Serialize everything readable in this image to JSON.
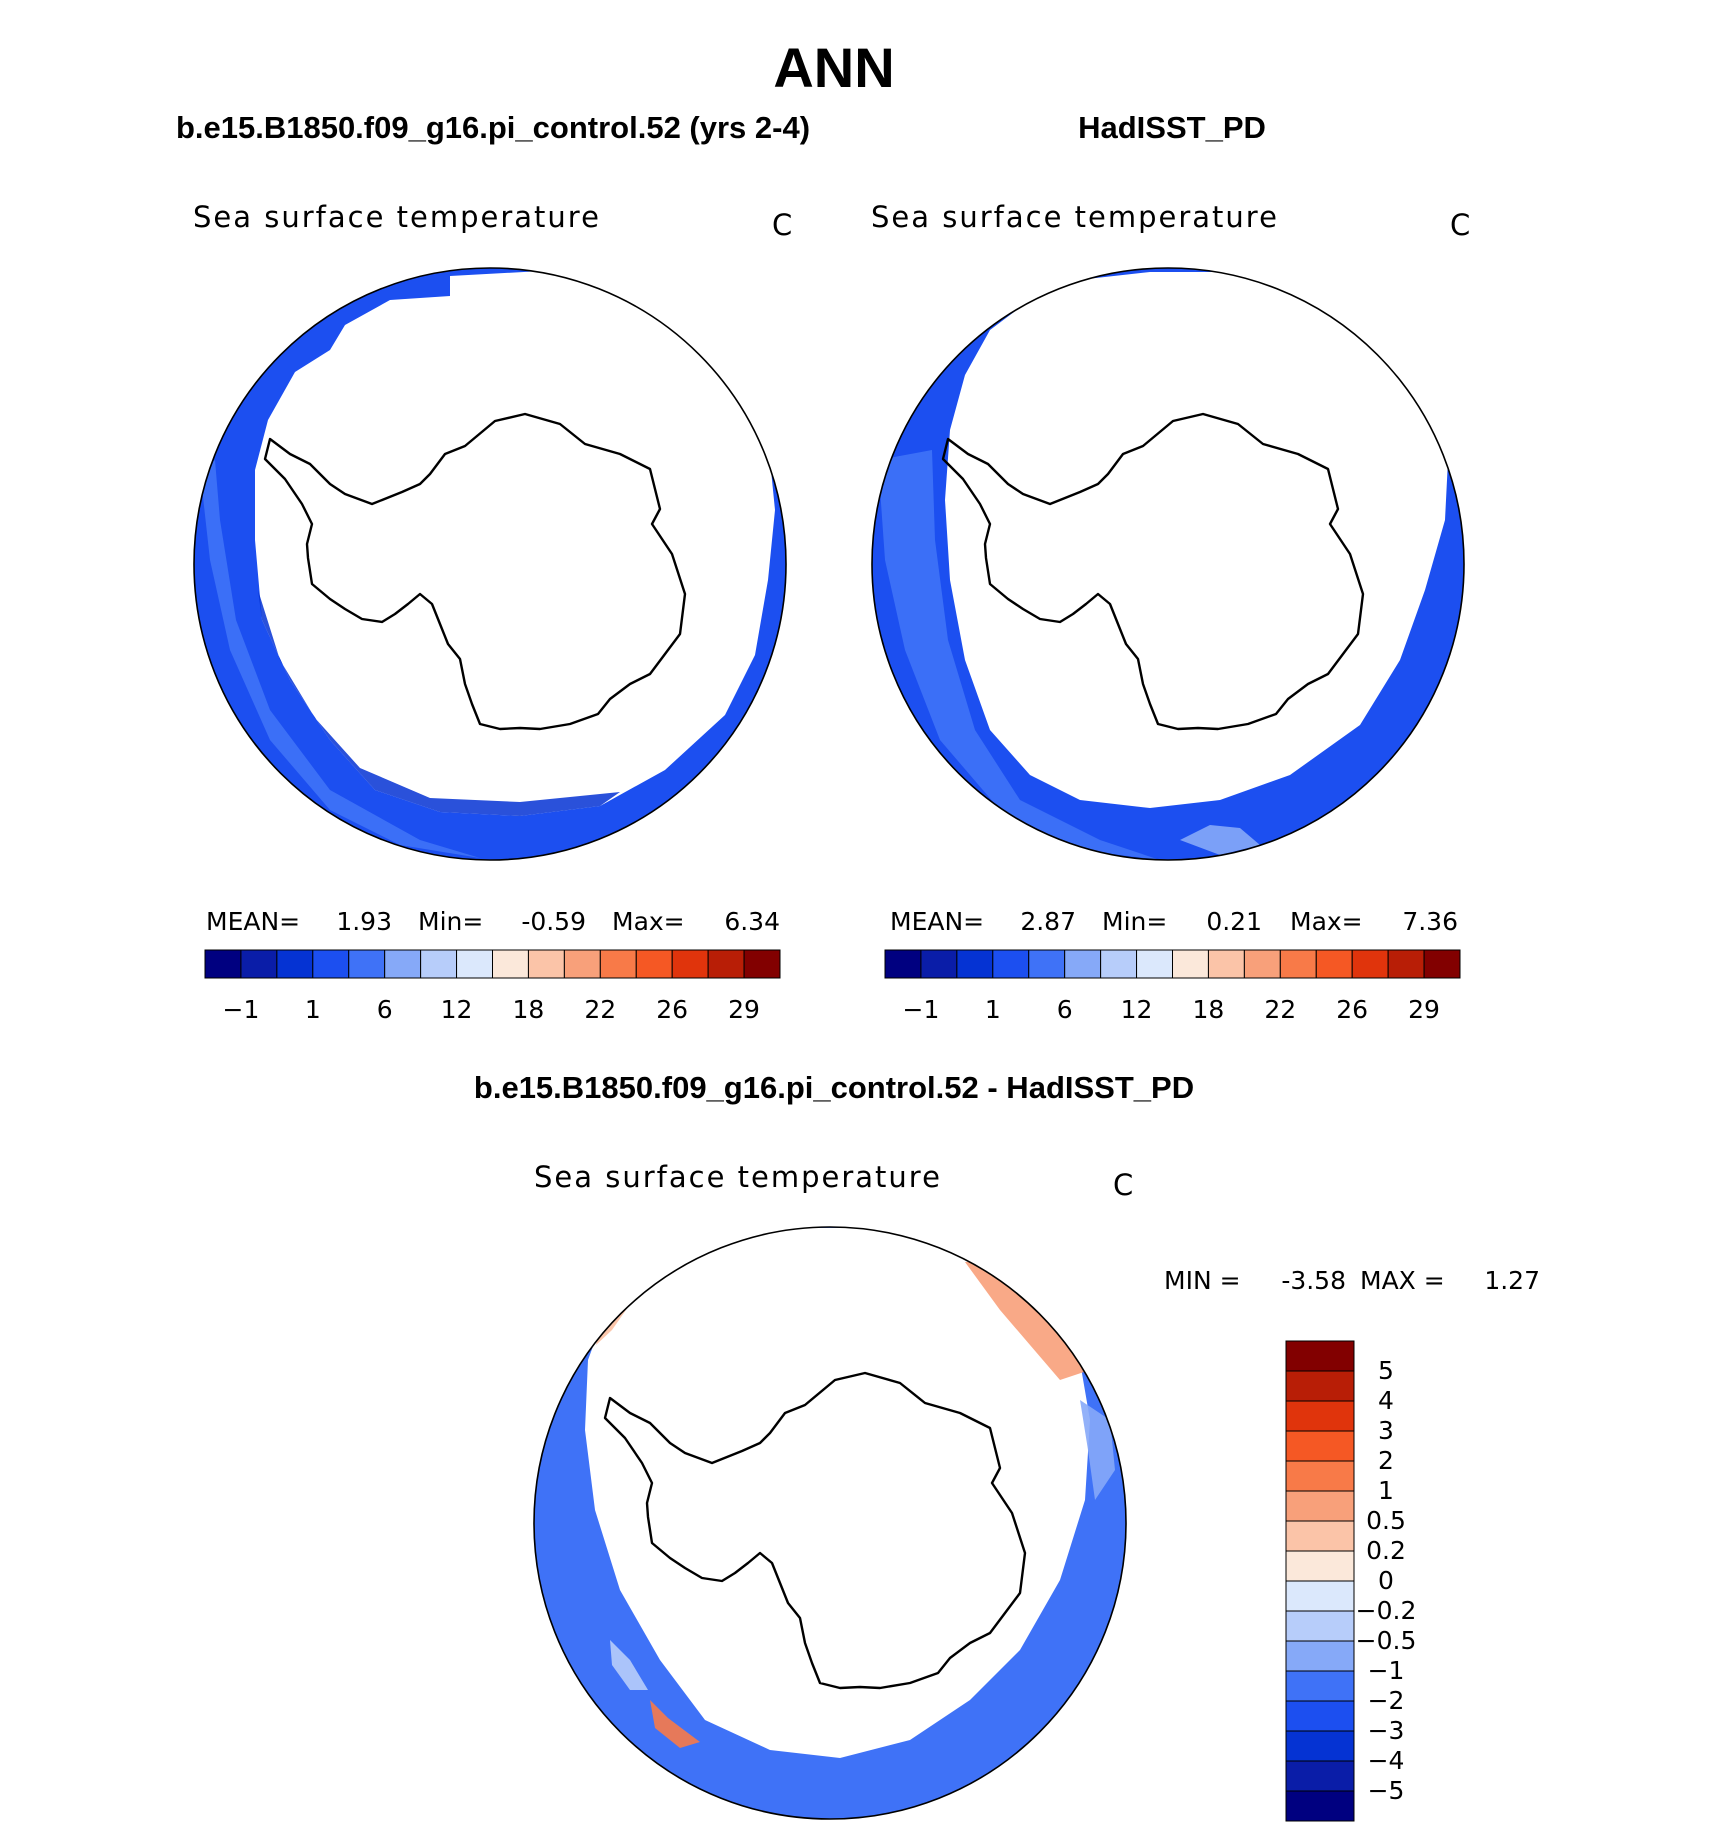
{
  "figure": {
    "season": "ANN",
    "left_title": "b.e15.B1850.f09_g16.pi_control.52 (yrs 2-4)",
    "right_title": "HadISST_PD",
    "diff_title": "b.e15.B1850.f09_g16.pi_control.52 - HadISST_PD"
  },
  "chart_data": [
    {
      "type": "heatmap",
      "name": "model",
      "title": "b.e15.B1850.f09_g16.pi_control.52 (yrs 2-4)",
      "field": "Sea surface temperature",
      "units": "C",
      "projection": "south polar stereographic",
      "stats": {
        "mean_label": "MEAN=",
        "mean": "1.93",
        "min_label": "Min=",
        "min": "-0.59",
        "max_label": "Max=",
        "max": "6.34"
      },
      "colorbar": {
        "levels": [
          -1,
          1,
          6,
          12,
          18,
          22,
          26,
          29
        ],
        "colors": [
          "#000080",
          "#0a1da8",
          "#0533d3",
          "#1c4ff0",
          "#3f72f7",
          "#86a9f8",
          "#b7cdfa",
          "#dbe8fc",
          "#fbe8da",
          "#fbc4a8",
          "#f8a07a",
          "#f87a48",
          "#f55824",
          "#e0340c",
          "#b81e06",
          "#820000"
        ]
      }
    },
    {
      "type": "heatmap",
      "name": "obs",
      "title": "HadISST_PD",
      "field": "Sea surface temperature",
      "units": "C",
      "projection": "south polar stereographic",
      "stats": {
        "mean_label": "MEAN=",
        "mean": "2.87",
        "min_label": "Min=",
        "min": "0.21",
        "max_label": "Max=",
        "max": "7.36"
      },
      "colorbar": {
        "levels": [
          -1,
          1,
          6,
          12,
          18,
          22,
          26,
          29
        ],
        "colors": [
          "#000080",
          "#0a1da8",
          "#0533d3",
          "#1c4ff0",
          "#3f72f7",
          "#86a9f8",
          "#b7cdfa",
          "#dbe8fc",
          "#fbe8da",
          "#fbc4a8",
          "#f8a07a",
          "#f87a48",
          "#f55824",
          "#e0340c",
          "#b81e06",
          "#820000"
        ]
      }
    },
    {
      "type": "heatmap",
      "name": "difference",
      "title": "b.e15.B1850.f09_g16.pi_control.52 - HadISST_PD",
      "field": "Sea surface temperature",
      "units": "C",
      "projection": "south polar stereographic",
      "stats": {
        "min_label": "MIN =",
        "min": "-3.58",
        "max_label": "MAX =",
        "max": "1.27"
      },
      "colorbar": {
        "orientation": "vertical",
        "levels": [
          5,
          4,
          3,
          2,
          1,
          0.5,
          0.2,
          0,
          -0.2,
          -0.5,
          -1,
          -2,
          -3,
          -4,
          -5
        ],
        "colors": [
          "#820000",
          "#b81e06",
          "#e0340c",
          "#f55824",
          "#f87a48",
          "#f8a07a",
          "#fbc4a8",
          "#fbe8da",
          "#dbe8fc",
          "#b7cdfa",
          "#86a9f8",
          "#3f72f7",
          "#1c4ff0",
          "#0533d3",
          "#0a1da8",
          "#000080"
        ]
      }
    }
  ]
}
